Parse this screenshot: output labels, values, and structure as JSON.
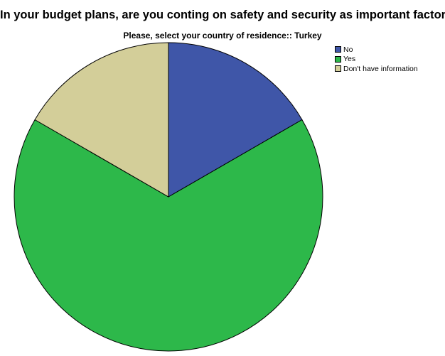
{
  "chart_data": {
    "type": "pie",
    "title": "In your budget plans, are you conting on safety and security as important factor?",
    "subtitle": "Please, select your country of residence:: Turkey",
    "legend_position": "top-right",
    "slices": [
      {
        "label": "No",
        "value": 1,
        "color": "#3f56a8"
      },
      {
        "label": "Yes",
        "value": 4,
        "color": "#2db84a"
      },
      {
        "label": "Don't have information",
        "value": 1,
        "color": "#d3ce99"
      }
    ]
  }
}
